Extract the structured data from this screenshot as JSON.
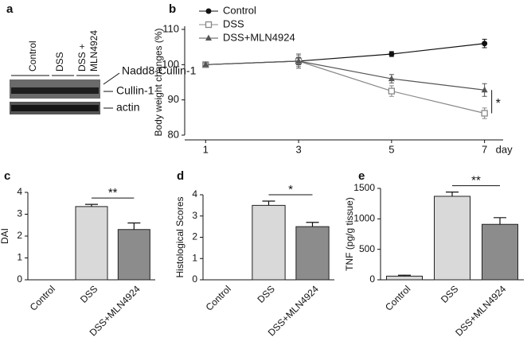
{
  "blot": {
    "panel": "a",
    "lanes": [
      "Control",
      "DSS",
      "DSS +",
      "MLN4924"
    ],
    "bands": [
      "Nadd8-Cullin-1",
      "Cullin-1",
      "actin"
    ]
  },
  "chart_data": [
    {
      "type": "line",
      "panel": "b",
      "x": [
        1,
        3,
        5,
        7
      ],
      "xlim": [
        0.55,
        7.4
      ],
      "xticks": [
        1,
        3,
        5,
        7
      ],
      "x_label": "day",
      "y_label": "Body weight changes (%)",
      "ylim": [
        80,
        110
      ],
      "yticks": [
        80,
        90,
        100,
        110
      ],
      "legend": "upper left",
      "series": [
        {
          "name": "Control",
          "color": "#111111",
          "marker": "circle",
          "values": [
            100,
            101,
            103,
            106
          ],
          "errors": [
            0.5,
            1,
            0.7,
            1.2
          ]
        },
        {
          "name": "DSS",
          "color": "#888888",
          "marker": "square",
          "values": [
            100,
            101,
            92.5,
            86.2
          ],
          "errors": [
            0.5,
            1.5,
            1.5,
            1.5
          ]
        },
        {
          "name": "DSS+MLN4924",
          "color": "#555555",
          "marker": "triangle",
          "values": [
            100,
            101,
            96,
            92.8
          ],
          "errors": [
            0.5,
            2,
            1.2,
            1.8
          ]
        }
      ],
      "annotation": "*"
    },
    {
      "type": "bar",
      "panel": "c",
      "categories": [
        "Control",
        "DSS",
        "DSS+MLN4924"
      ],
      "values": [
        0,
        3.35,
        2.3
      ],
      "errors": [
        0,
        0.1,
        0.3
      ],
      "colors": [
        "#d9d9d9",
        "#d9d9d9",
        "#8c8c8c"
      ],
      "y_label": "DAI",
      "ylim": [
        0,
        4
      ],
      "yticks": [
        0,
        1,
        2,
        3,
        4
      ],
      "annotation": "**"
    },
    {
      "type": "bar",
      "panel": "d",
      "categories": [
        "Control",
        "DSS",
        "DSS+MLN4924"
      ],
      "values": [
        0,
        3.5,
        2.5
      ],
      "errors": [
        0,
        0.2,
        0.2
      ],
      "colors": [
        "#d9d9d9",
        "#d9d9d9",
        "#8c8c8c"
      ],
      "y_label": "Histological Scores",
      "ylim": [
        0,
        4
      ],
      "yticks": [
        0,
        1,
        2,
        3,
        4
      ],
      "annotation": "*"
    },
    {
      "type": "bar",
      "panel": "e",
      "categories": [
        "Control",
        "DSS",
        "DSS+MLN4924"
      ],
      "values": [
        60,
        1370,
        910
      ],
      "errors": [
        15,
        70,
        110
      ],
      "colors": [
        "#d9d9d9",
        "#d9d9d9",
        "#8c8c8c"
      ],
      "y_label": "TNF (pg/g tissue)",
      "ylim": [
        0,
        1500
      ],
      "yticks": [
        0,
        500,
        1000,
        1500
      ],
      "annotation": "**"
    }
  ]
}
